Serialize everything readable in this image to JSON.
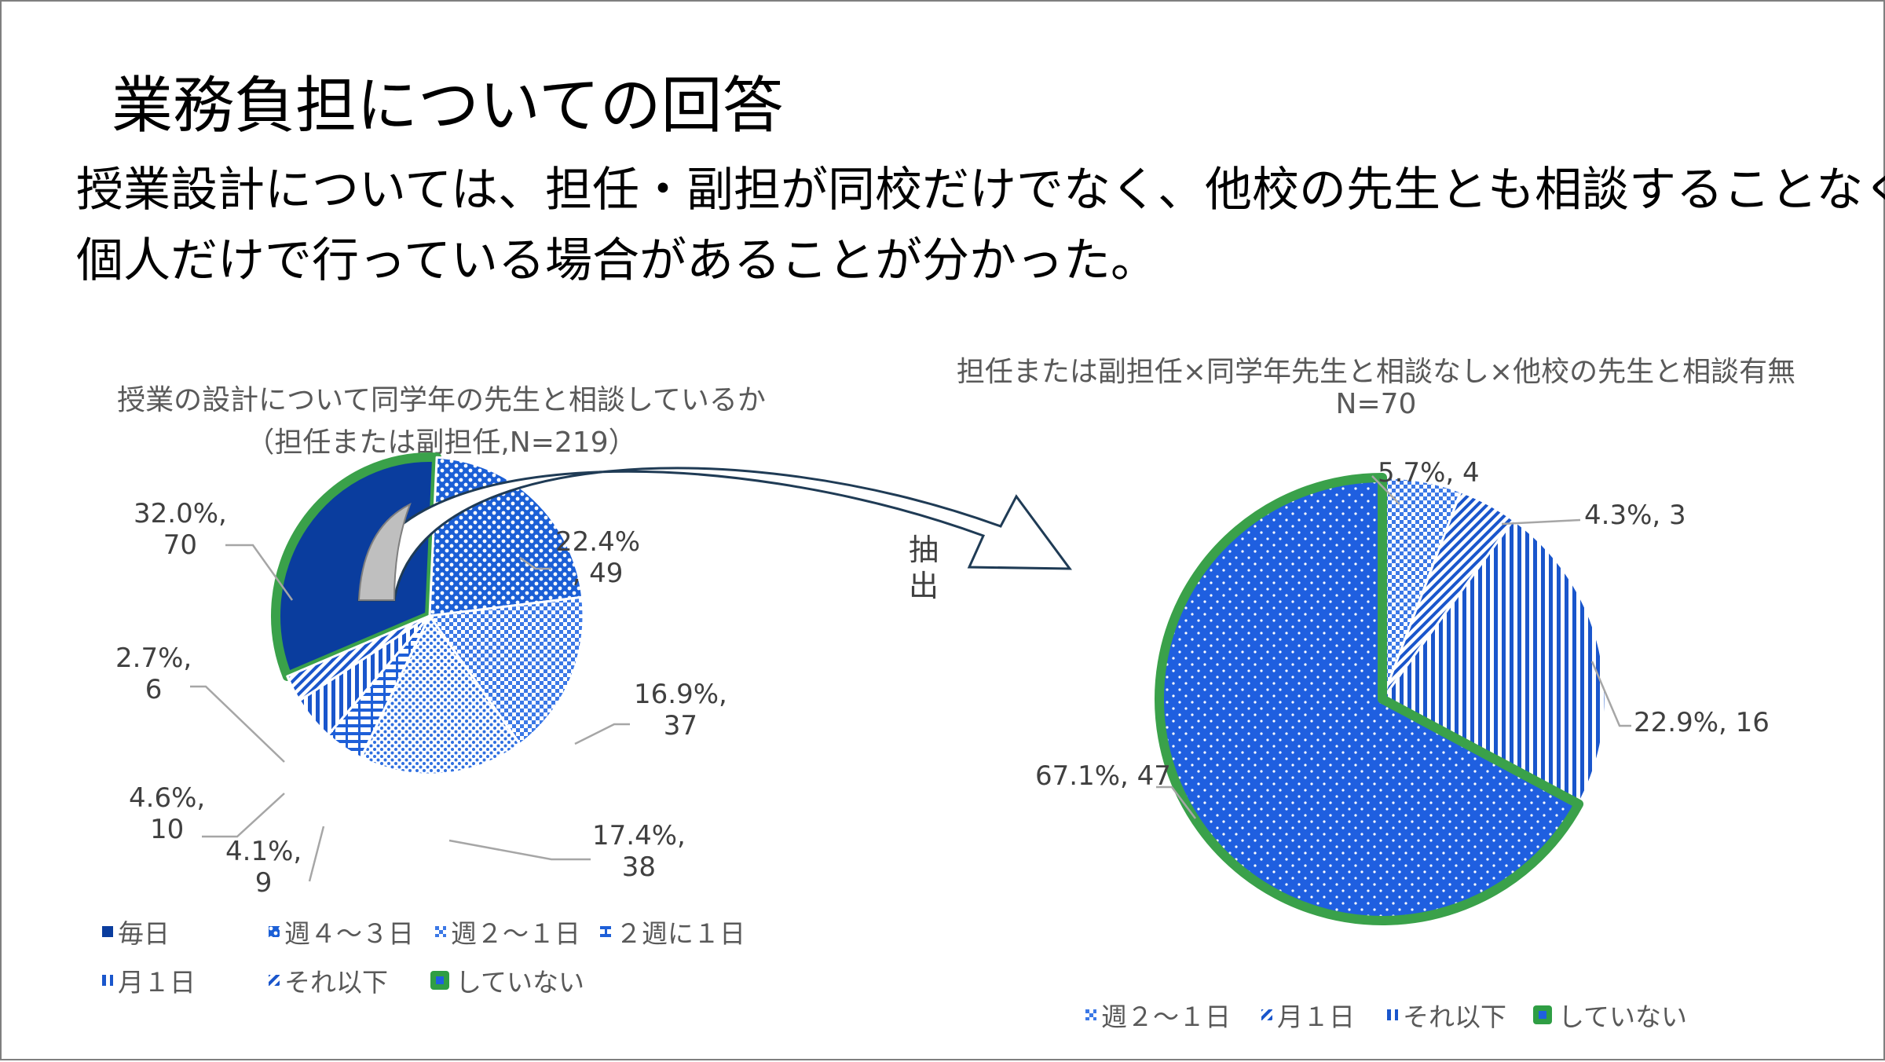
{
  "slide": {
    "title": "業務負担についての回答",
    "subtitle_line1": "授業設計については、担任・副担が同校だけでなく、他校の先生とも相談することなく、",
    "subtitle_line2": "個人だけで行っている場合があることが分かった。",
    "arrow_label": "抽出"
  },
  "chart_data": [
    {
      "type": "pie",
      "title": "授業の設計について同学年の先生と相談しているか",
      "subtitle": "（担任または副担任,N=219）",
      "slices": [
        {
          "name": "毎日",
          "percent": 32.0,
          "count": 70,
          "label_line1": "32.0%,",
          "label_line2": "70",
          "color": "#0a3d9e"
        },
        {
          "name": "週４～３日",
          "percent": 22.4,
          "count": 49,
          "label_line1": "22.4%",
          "label_line2": ", 49",
          "color": "#1b5fd6"
        },
        {
          "name": "週２～１日",
          "percent": 16.9,
          "count": 37,
          "label_line1": "16.9%,",
          "label_line2": "37",
          "color": "#5c8ee6"
        },
        {
          "name": "２週に１日",
          "percent": 17.4,
          "count": 38,
          "label_line1": "17.4%,",
          "label_line2": "38",
          "color": "#2f6fe0"
        },
        {
          "name": "月１日",
          "percent": 4.1,
          "count": 9,
          "label_line1": "4.1%,",
          "label_line2": "9",
          "color": "#1e5fd8"
        },
        {
          "name": "それ以下",
          "percent": 4.6,
          "count": 10,
          "label_line1": "4.6%,",
          "label_line2": "10",
          "color": "#1a56cc"
        },
        {
          "name": "していない",
          "percent": 2.7,
          "count": 6,
          "label_line1": "2.7%,",
          "label_line2": "6",
          "color": "#1a56cc"
        }
      ],
      "legend": [
        "毎日",
        "週４～３日",
        "週２～１日",
        "２週に１日",
        "月１日",
        "それ以下",
        "していない"
      ],
      "highlight_color": "#3aa14a"
    },
    {
      "type": "pie",
      "title": "担任または副担任×同学年先生と相談なし×他校の先生と相談有無",
      "subtitle": "N=70",
      "slices": [
        {
          "name": "週２～１日",
          "percent": 5.7,
          "count": 4,
          "label": "5.7%, 4",
          "color": "#5c8ee6"
        },
        {
          "name": "月１日",
          "percent": 4.3,
          "count": 3,
          "label": "4.3%, 3",
          "color": "#3b78e6"
        },
        {
          "name": "それ以下",
          "percent": 22.9,
          "count": 16,
          "label": "22.9%, 16",
          "color": "#1a56cc"
        },
        {
          "name": "していない",
          "percent": 67.1,
          "count": 47,
          "label": "67.1%, 47",
          "color": "#1f5fe0"
        }
      ],
      "legend": [
        "週２～１日",
        "月１日",
        "それ以下",
        "していない"
      ],
      "highlight_color": "#3aa14a"
    }
  ]
}
